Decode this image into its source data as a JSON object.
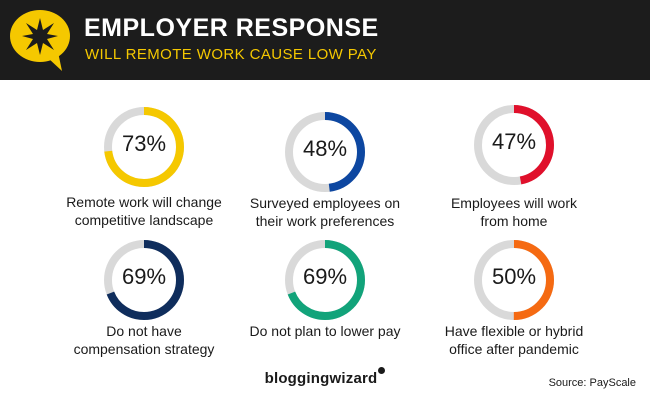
{
  "header": {
    "title": "EMPLOYER RESPONSE",
    "subtitle": "WILL REMOTE WORK CAUSE LOW PAY"
  },
  "colors": {
    "header_bg": "#1c1c1c",
    "accent": "#f5c800",
    "track": "#d9d9d9"
  },
  "chart_data": {
    "type": "pie",
    "title": "EMPLOYER RESPONSE",
    "subtitle": "WILL REMOTE WORK CAUSE LOW PAY",
    "unit": "%",
    "stats": [
      {
        "value": 73,
        "display": "73%",
        "label_lines": [
          "Remote work will change",
          "competitive landscape"
        ],
        "color": "#f5c800"
      },
      {
        "value": 48,
        "display": "48%",
        "label_lines": [
          "Surveyed employees on",
          "their work preferences"
        ],
        "color": "#0d47a1"
      },
      {
        "value": 47,
        "display": "47%",
        "label_lines": [
          "Employees will work",
          "from home"
        ],
        "color": "#e0102b"
      },
      {
        "value": 69,
        "display": "69%",
        "label_lines": [
          "Do not have",
          "compensation strategy"
        ],
        "color": "#0f2d5c"
      },
      {
        "value": 69,
        "display": "69%",
        "label_lines": [
          "Do not plan to lower pay"
        ],
        "color": "#12a37a"
      },
      {
        "value": 50,
        "display": "50%",
        "label_lines": [
          "Have flexible or hybrid",
          "office after pandemic"
        ],
        "color": "#f56a12"
      }
    ]
  },
  "footer": {
    "brand": "bloggingwizard",
    "source": "Source: PayScale"
  }
}
